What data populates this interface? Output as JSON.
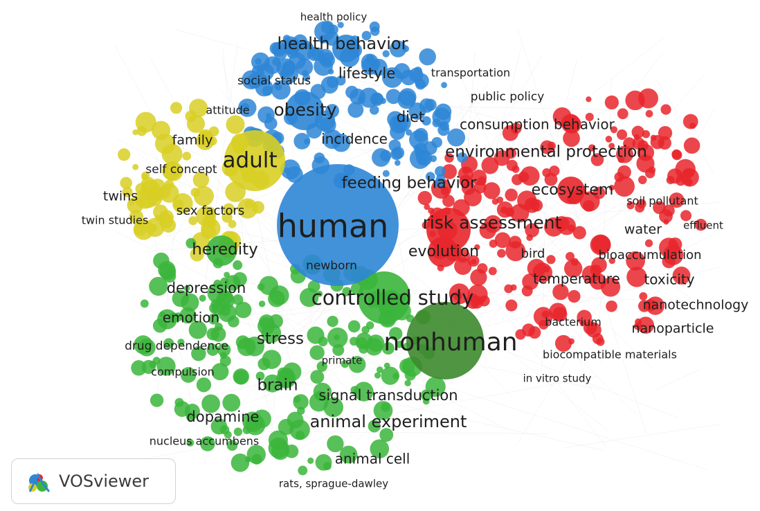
{
  "app": {
    "name": "VOSviewer"
  },
  "colors": {
    "red": "#e8262b",
    "green": "#3bb53b",
    "blue": "#2e86d6",
    "yellow": "#d8cf24"
  },
  "clusters": [
    {
      "id": "red",
      "color": "#e8262b",
      "terms": [
        {
          "label": "public policy",
          "weight": 2
        },
        {
          "label": "consumption behavior",
          "weight": 2
        },
        {
          "label": "environmental protection",
          "weight": 3
        },
        {
          "label": "ecosystem",
          "weight": 3
        },
        {
          "label": "soil pollutant",
          "weight": 1
        },
        {
          "label": "risk assessment",
          "weight": 3
        },
        {
          "label": "water",
          "weight": 2
        },
        {
          "label": "effluent",
          "weight": 1
        },
        {
          "label": "evolution",
          "weight": 2
        },
        {
          "label": "bird",
          "weight": 2
        },
        {
          "label": "bioaccumulation",
          "weight": 2
        },
        {
          "label": "temperature",
          "weight": 2
        },
        {
          "label": "toxicity",
          "weight": 2
        },
        {
          "label": "nanotechnology",
          "weight": 2
        },
        {
          "label": "bacterium",
          "weight": 1
        },
        {
          "label": "nanoparticle",
          "weight": 2
        },
        {
          "label": "biocompatible materials",
          "weight": 1
        },
        {
          "label": "in vitro study",
          "weight": 1
        }
      ]
    },
    {
      "id": "blue",
      "color": "#2e86d6",
      "terms": [
        {
          "label": "health policy",
          "weight": 1
        },
        {
          "label": "health behavior",
          "weight": 3
        },
        {
          "label": "transportation",
          "weight": 1
        },
        {
          "label": "social status",
          "weight": 1
        },
        {
          "label": "lifestyle",
          "weight": 2
        },
        {
          "label": "obesity",
          "weight": 3
        },
        {
          "label": "diet",
          "weight": 2
        },
        {
          "label": "incidence",
          "weight": 2
        },
        {
          "label": "feeding behavior",
          "weight": 3
        },
        {
          "label": "human",
          "weight": 5
        },
        {
          "label": "newborn",
          "weight": 1
        }
      ]
    },
    {
      "id": "yellow",
      "color": "#d8cf24",
      "terms": [
        {
          "label": "attitude",
          "weight": 1
        },
        {
          "label": "family",
          "weight": 2
        },
        {
          "label": "adult",
          "weight": 4
        },
        {
          "label": "self concept",
          "weight": 1
        },
        {
          "label": "twins",
          "weight": 2
        },
        {
          "label": "sex factors",
          "weight": 1
        },
        {
          "label": "twin studies",
          "weight": 1
        },
        {
          "label": "heredity",
          "weight": 3
        }
      ]
    },
    {
      "id": "green",
      "color": "#3bb53b",
      "terms": [
        {
          "label": "depression",
          "weight": 3
        },
        {
          "label": "controlled study",
          "weight": 4
        },
        {
          "label": "emotion",
          "weight": 2
        },
        {
          "label": "nonhuman",
          "weight": 5
        },
        {
          "label": "stress",
          "weight": 3
        },
        {
          "label": "drug dependence",
          "weight": 1
        },
        {
          "label": "primate",
          "weight": 1
        },
        {
          "label": "compulsion",
          "weight": 1
        },
        {
          "label": "brain",
          "weight": 3
        },
        {
          "label": "signal transduction",
          "weight": 3
        },
        {
          "label": "dopamine",
          "weight": 3
        },
        {
          "label": "animal experiment",
          "weight": 3
        },
        {
          "label": "nucleus accumbens",
          "weight": 1
        },
        {
          "label": "animal cell",
          "weight": 2
        },
        {
          "label": "rats, sprague-dawley",
          "weight": 1
        }
      ]
    }
  ]
}
